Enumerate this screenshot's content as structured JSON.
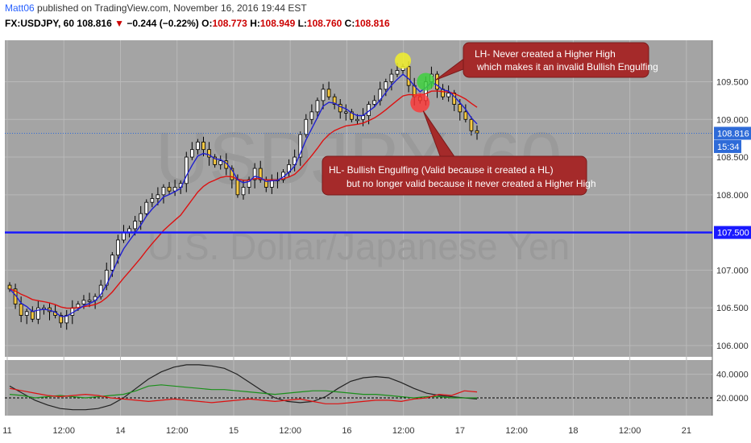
{
  "header": {
    "author": "Matt06",
    "published_text": "published on TradingView.com, November 16, 2016 19:44 EST",
    "symbol": "FX:USDJPY, 60",
    "last": "108.816",
    "change": "−0.244 (−0.22%)",
    "open_label": "O:",
    "open": "108.773",
    "high_label": "H:",
    "high": "108.949",
    "low_label": "L:",
    "low": "108.760",
    "close_label": "C:",
    "close": "108.816"
  },
  "watermark": {
    "symbol": "USDJPY, 60",
    "name": "U.S. Dollar/Japanese Yen"
  },
  "colors": {
    "plot_bg": "#a4a4a4",
    "up_body": "#ffffff",
    "down_body": "#f5c842",
    "ema_fast": "#2020d0",
    "ema_slow": "#dd1111",
    "level_line": "#1a1aff",
    "annotation_bg": "#a52a2a"
  },
  "chart_data": [
    {
      "type": "candlestick",
      "ylim": [
        105.85,
        110.05
      ],
      "y_ticks": [
        "106.000",
        "106.500",
        "107.000",
        "107.500",
        "108.000",
        "108.500",
        "109.000",
        "109.500"
      ],
      "x_ticks": [
        "11",
        "12:00",
        "14",
        "12:00",
        "15",
        "12:00",
        "16",
        "12:00",
        "17",
        "12:00",
        "18",
        "12:00",
        "21"
      ],
      "price_labels": [
        {
          "text": "108.816",
          "value": 108.816,
          "style": "current"
        },
        {
          "text": "15:34",
          "value": 108.64,
          "style": "countdown"
        },
        {
          "text": "107.500",
          "value": 107.5,
          "style": "level"
        }
      ],
      "horizontal_level": 107.5,
      "close_path": [
        106.75,
        106.55,
        106.4,
        106.45,
        106.35,
        106.5,
        106.5,
        106.45,
        106.4,
        106.3,
        106.4,
        106.5,
        106.55,
        106.6,
        106.6,
        106.65,
        106.8,
        107.0,
        107.2,
        107.4,
        107.5,
        107.55,
        107.65,
        107.75,
        107.9,
        107.95,
        108.0,
        108.1,
        108.05,
        108.1,
        108.15,
        108.5,
        108.6,
        108.7,
        108.6,
        108.5,
        108.4,
        108.45,
        108.35,
        108.2,
        108.0,
        108.1,
        108.2,
        108.35,
        108.2,
        108.1,
        108.2,
        108.2,
        108.3,
        108.4,
        108.5,
        108.8,
        109.0,
        109.1,
        109.25,
        109.4,
        109.3,
        109.2,
        109.1,
        109.1,
        109.0,
        109.0,
        109.05,
        109.2,
        109.25,
        109.4,
        109.5,
        109.6,
        109.65,
        109.7,
        109.45,
        109.3,
        109.25,
        109.5,
        109.6,
        109.4,
        109.3,
        109.35,
        109.2,
        109.1,
        109.0,
        108.85,
        108.82
      ],
      "lines": [
        {
          "name": "",
          "color": "#2020d0",
          "role": "ema_fast"
        },
        {
          "name": "",
          "color": "#dd1111",
          "role": "ema_slow"
        }
      ]
    },
    {
      "type": "line",
      "ylim": [
        5,
        52
      ],
      "y_ticks": [
        "20.0000",
        "40.0000"
      ],
      "reference_line": 20,
      "series": [
        {
          "color": "#222222",
          "values": [
            30,
            24,
            18,
            14,
            11,
            10,
            10,
            11,
            14,
            20,
            28,
            36,
            42,
            46,
            48,
            48,
            47,
            45,
            40,
            33,
            26,
            20,
            17,
            16,
            17,
            21,
            28,
            34,
            37,
            38,
            37,
            33,
            28,
            24,
            22,
            21,
            20,
            19
          ]
        },
        {
          "color": "#1a8f1a",
          "values": [
            23,
            22,
            20,
            21,
            22,
            21,
            20,
            21,
            22,
            23,
            26,
            30,
            31,
            30,
            29,
            28,
            27,
            27,
            26,
            25,
            24,
            23,
            24,
            25,
            26,
            26,
            25,
            24,
            23,
            23,
            22,
            21,
            20,
            21,
            21,
            20,
            20,
            20
          ]
        },
        {
          "color": "#dd1111",
          "values": [
            28,
            26,
            24,
            22,
            21,
            22,
            23,
            22,
            20,
            19,
            18,
            17,
            18,
            19,
            18,
            17,
            16,
            17,
            18,
            19,
            18,
            17,
            18,
            19,
            17,
            15,
            15,
            16,
            17,
            18,
            18,
            17,
            19,
            20,
            23,
            22,
            26,
            25
          ]
        }
      ]
    }
  ],
  "annotations": [
    {
      "text1": "LH- Never created a Higher High",
      "text2": "which makes it an invalid Bullish Engulfing"
    },
    {
      "text1": "HL- Bullish Engulfing (Valid because it created a HL)",
      "text2": "but no longer valid because it never created a Higher High"
    }
  ]
}
